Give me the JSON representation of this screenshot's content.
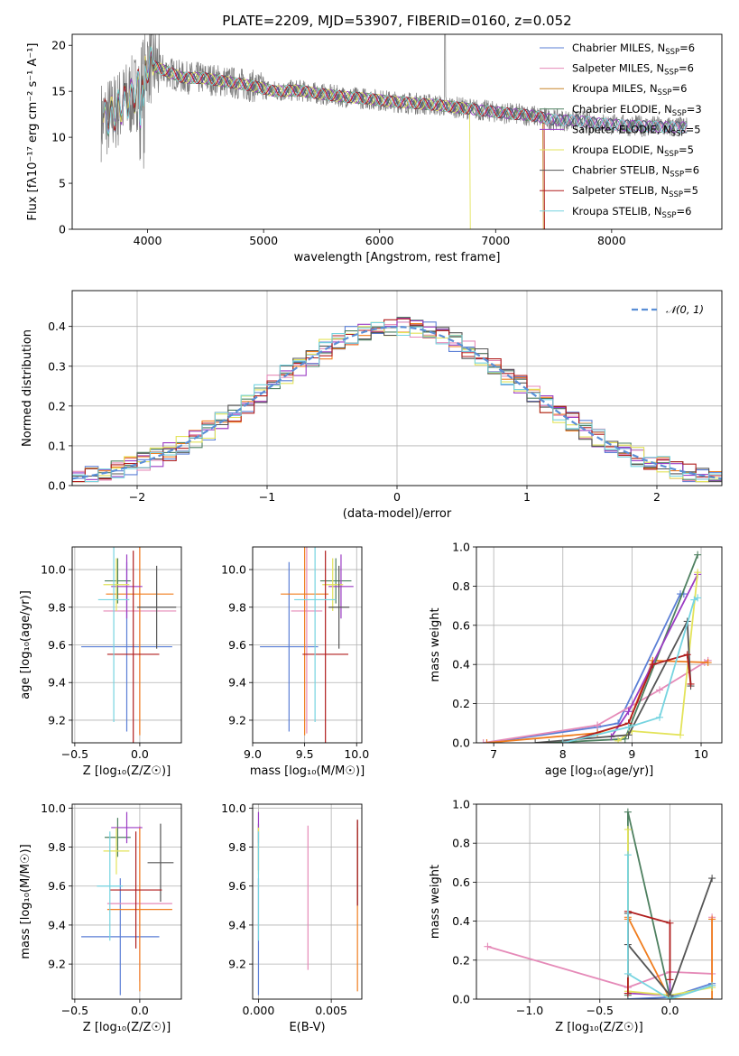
{
  "title": "PLATE=2209, MJD=53907, FIBERID=0160, z=0.052",
  "colors": {
    "chabrier_miles": "#5b7fd6",
    "salpeter_miles": "#e58ab8",
    "kroupa_miles": "#c8862a",
    "chabrier_elodie": "#9b3cc4",
    "salpeter_elodie": "#9b3cc4",
    "kroupa_elodie": "#e3e35a",
    "chabrier_stelib": "#555555",
    "salpeter_stelib": "#b01d1d",
    "kroupa_stelib": "#76d4e0",
    "orange": "#f07d1e",
    "green": "#4e8060",
    "gaussian": "#5b8fd6",
    "grid": "#b0b0b0"
  },
  "chart_data": [
    {
      "id": "spectrum",
      "type": "line",
      "title": "PLATE=2209, MJD=53907, FIBERID=0160, z=0.052",
      "xlabel": "wavelength [Angstrom, rest frame]",
      "ylabel": "Flux [fλ10⁻¹⁷ erg cm⁻² s⁻¹ A⁻¹]",
      "xlim": [
        3350,
        8950
      ],
      "ylim": [
        0,
        21.2
      ],
      "xticks": [
        4000,
        5000,
        6000,
        7000,
        8000
      ],
      "yticks": [
        0,
        5,
        10,
        15,
        20
      ],
      "grid": false,
      "legend_position": "top-right",
      "legend": [
        {
          "label": "Chabrier MILES, N",
          "sub": "SSP",
          "suffix": "=6",
          "color": "#5b7fd6"
        },
        {
          "label": "Salpeter MILES, N",
          "sub": "SSP",
          "suffix": "=6",
          "color": "#e58ab8"
        },
        {
          "label": "Kroupa MILES, N",
          "sub": "SSP",
          "suffix": "=6",
          "color": "#c8862a"
        },
        {
          "label": "Chabrier ELODIE, N",
          "sub": "SSP",
          "suffix": "=3",
          "color": "#4e8060"
        },
        {
          "label": "Salpeter ELODIE, N",
          "sub": "SSP",
          "suffix": "=5",
          "color": "#9b3cc4"
        },
        {
          "label": "Kroupa ELODIE, N",
          "sub": "SSP",
          "suffix": "=5",
          "color": "#e3e35a"
        },
        {
          "label": "Chabrier STELIB, N",
          "sub": "SSP",
          "suffix": "=6",
          "color": "#555555"
        },
        {
          "label": "Salpeter STELIB, N",
          "sub": "SSP",
          "suffix": "=5",
          "color": "#b01d1d"
        },
        {
          "label": "Kroupa STELIB, N",
          "sub": "SSP",
          "suffix": "=6",
          "color": "#76d4e0"
        }
      ],
      "continuum": [
        [
          3600,
          11.8
        ],
        [
          3700,
          12.5
        ],
        [
          3800,
          13.8
        ],
        [
          3900,
          14.8
        ],
        [
          4000,
          18.0
        ],
        [
          4100,
          17.5
        ],
        [
          4200,
          17.0
        ],
        [
          4300,
          16.5
        ],
        [
          4500,
          16.4
        ],
        [
          4700,
          16.0
        ],
        [
          4900,
          15.6
        ],
        [
          5100,
          15.0
        ],
        [
          5300,
          15.1
        ],
        [
          5500,
          14.7
        ],
        [
          5700,
          14.4
        ],
        [
          5900,
          14.2
        ],
        [
          6100,
          13.9
        ],
        [
          6300,
          13.7
        ],
        [
          6500,
          13.5
        ],
        [
          6700,
          13.2
        ],
        [
          6900,
          12.9
        ],
        [
          7100,
          12.6
        ],
        [
          7300,
          12.4
        ],
        [
          7500,
          11.9
        ],
        [
          7700,
          11.8
        ],
        [
          7900,
          11.5
        ],
        [
          8100,
          11.3
        ],
        [
          8300,
          11.2
        ],
        [
          8500,
          11.1
        ],
        [
          8650,
          11.1
        ]
      ]
    },
    {
      "id": "residuals",
      "type": "line",
      "xlabel": "(data-model)/error",
      "ylabel": "Normed distribution",
      "xlim": [
        -2.5,
        2.5
      ],
      "ylim": [
        0,
        0.49
      ],
      "xticks": [
        -2,
        -1,
        0,
        1,
        2
      ],
      "yticks": [
        0.0,
        0.1,
        0.2,
        0.3,
        0.4
      ],
      "grid": true,
      "legend_position": "top-right",
      "legend": [
        {
          "label": "𝒩(0, 1)",
          "color": "#5b8fd6"
        }
      ],
      "bin_width": 0.1
    },
    {
      "id": "age_vs_Z",
      "type": "scatter",
      "xlabel": "Z [log₁₀(Z/Z☉)]",
      "ylabel": "age [log₁₀(age/yr)]",
      "xlim": [
        -0.52,
        0.32
      ],
      "ylim": [
        9.08,
        10.12
      ],
      "xticks": [
        -0.5,
        0.0
      ],
      "yticks": [
        9.2,
        9.4,
        9.6,
        9.8,
        10.0
      ],
      "grid": true,
      "points": [
        {
          "color": "#5b7fd6",
          "x": -0.1,
          "xerr": 0.35,
          "y": 9.59,
          "yerr": 0.45
        },
        {
          "color": "#e58ab8",
          "x": 0.0,
          "xerr": 0.28,
          "y": 9.78,
          "yerr": 0.65
        },
        {
          "color": "#f07d1e",
          "x": 0.0,
          "xerr": 0.26,
          "y": 9.87,
          "yerr": 0.75
        },
        {
          "color": "#4e8060",
          "x": -0.17,
          "xerr": 0.1,
          "y": 9.94,
          "yerr": 0.12
        },
        {
          "color": "#9b3cc4",
          "x": -0.1,
          "xerr": 0.12,
          "y": 9.91,
          "yerr": 0.17
        },
        {
          "color": "#e3e35a",
          "x": -0.18,
          "xerr": 0.1,
          "y": 9.92,
          "yerr": 0.14
        },
        {
          "color": "#555555",
          "x": 0.13,
          "xerr": 0.15,
          "y": 9.8,
          "yerr": 0.22
        },
        {
          "color": "#b01d1d",
          "x": -0.05,
          "xerr": 0.2,
          "y": 9.55,
          "yerr": 0.55
        },
        {
          "color": "#76d4e0",
          "x": -0.2,
          "xerr": 0.12,
          "y": 9.84,
          "yerr": 0.65
        }
      ]
    },
    {
      "id": "age_vs_mass",
      "type": "scatter",
      "xlabel": "mass [log₁₀(M/M☉)]",
      "xlim": [
        9.0,
        10.05
      ],
      "ylim": [
        9.08,
        10.12
      ],
      "xticks": [
        9.0,
        9.5,
        10.0
      ],
      "yticks": [
        9.2,
        9.4,
        9.6,
        9.8,
        10.0
      ],
      "grid": true,
      "points": [
        {
          "color": "#5b7fd6",
          "x": 9.35,
          "xerr": 0.28,
          "y": 9.59,
          "yerr": 0.45
        },
        {
          "color": "#e58ab8",
          "x": 9.52,
          "xerr": 0.15,
          "y": 9.78,
          "yerr": 0.65
        },
        {
          "color": "#f07d1e",
          "x": 9.5,
          "xerr": 0.23,
          "y": 9.87,
          "yerr": 0.75
        },
        {
          "color": "#4e8060",
          "x": 9.8,
          "xerr": 0.15,
          "y": 9.94,
          "yerr": 0.12
        },
        {
          "color": "#9b3cc4",
          "x": 9.85,
          "xerr": 0.12,
          "y": 9.91,
          "yerr": 0.17
        },
        {
          "color": "#e3e35a",
          "x": 9.77,
          "xerr": 0.1,
          "y": 9.92,
          "yerr": 0.14
        },
        {
          "color": "#555555",
          "x": 9.83,
          "xerr": 0.1,
          "y": 9.8,
          "yerr": 0.22
        },
        {
          "color": "#b01d1d",
          "x": 9.7,
          "xerr": 0.22,
          "y": 9.55,
          "yerr": 0.55
        },
        {
          "color": "#76d4e0",
          "x": 9.6,
          "xerr": 0.2,
          "y": 9.84,
          "yerr": 0.65
        }
      ]
    },
    {
      "id": "weight_vs_age",
      "type": "line",
      "xlabel": "age [log₁₀(age/yr)]",
      "ylabel": "mass weight",
      "xlim": [
        6.75,
        10.3
      ],
      "ylim": [
        0,
        1.0
      ],
      "xticks": [
        7,
        8,
        9,
        10
      ],
      "yticks": [
        0.0,
        0.2,
        0.4,
        0.6,
        0.8,
        1.0
      ],
      "grid": true,
      "series": [
        {
          "color": "#5b7fd6",
          "x": [
            6.9,
            8.5,
            8.8,
            9.7,
            9.75
          ],
          "y": [
            0.0,
            0.08,
            0.1,
            0.76,
            0.76
          ]
        },
        {
          "color": "#e58ab8",
          "x": [
            6.85,
            8.5,
            9.4,
            10.05,
            10.1
          ],
          "y": [
            0.0,
            0.09,
            0.27,
            0.41,
            0.42
          ]
        },
        {
          "color": "#f07d1e",
          "x": [
            6.9,
            8.5,
            8.95,
            9.3,
            10.1
          ],
          "y": [
            0.0,
            0.05,
            0.1,
            0.42,
            0.41
          ]
        },
        {
          "color": "#4e8060",
          "x": [
            7.8,
            8.9,
            9.95
          ],
          "y": [
            0.0,
            0.02,
            0.96
          ]
        },
        {
          "color": "#9b3cc4",
          "x": [
            8.7,
            8.95,
            9.95
          ],
          "y": [
            0.03,
            0.16,
            0.86
          ]
        },
        {
          "color": "#e3e35a",
          "x": [
            8.8,
            9.0,
            9.7,
            9.95
          ],
          "y": [
            0.01,
            0.06,
            0.04,
            0.87
          ]
        },
        {
          "color": "#555555",
          "x": [
            7.6,
            8.95,
            9.8,
            9.85
          ],
          "y": [
            0.0,
            0.04,
            0.62,
            0.29
          ]
        },
        {
          "color": "#b01d1d",
          "x": [
            8.0,
            8.95,
            9.3,
            9.8,
            9.85
          ],
          "y": [
            0.0,
            0.1,
            0.4,
            0.45,
            0.3
          ]
        },
        {
          "color": "#76d4e0",
          "x": [
            8.0,
            8.95,
            9.4,
            9.9,
            9.95
          ],
          "y": [
            0.0,
            0.08,
            0.13,
            0.73,
            0.74
          ]
        }
      ]
    },
    {
      "id": "mass_vs_Z",
      "type": "scatter",
      "xlabel": "Z [log₁₀(Z/Z☉)]",
      "ylabel": "mass [log₁₀(M/M☉)]",
      "xlim": [
        -0.52,
        0.32
      ],
      "ylim": [
        9.02,
        10.02
      ],
      "xticks": [
        -0.5,
        0.0
      ],
      "yticks": [
        9.2,
        9.4,
        9.6,
        9.8,
        10.0
      ],
      "grid": true,
      "points": [
        {
          "color": "#5b7fd6",
          "x": -0.15,
          "xerr": 0.3,
          "y": 9.34,
          "yerr": 0.3
        },
        {
          "color": "#e58ab8",
          "x": 0.0,
          "xerr": 0.25,
          "y": 9.51,
          "yerr": 0.4
        },
        {
          "color": "#f07d1e",
          "x": 0.0,
          "xerr": 0.25,
          "y": 9.48,
          "yerr": 0.42
        },
        {
          "color": "#4e8060",
          "x": -0.17,
          "xerr": 0.1,
          "y": 9.85,
          "yerr": 0.1
        },
        {
          "color": "#9b3cc4",
          "x": -0.1,
          "xerr": 0.12,
          "y": 9.9,
          "yerr": 0.08
        },
        {
          "color": "#e3e35a",
          "x": -0.18,
          "xerr": 0.1,
          "y": 9.78,
          "yerr": 0.12
        },
        {
          "color": "#555555",
          "x": 0.16,
          "xerr": 0.1,
          "y": 9.72,
          "yerr": 0.2
        },
        {
          "color": "#b01d1d",
          "x": -0.03,
          "xerr": 0.2,
          "y": 9.58,
          "yerr": 0.3
        },
        {
          "color": "#76d4e0",
          "x": -0.23,
          "xerr": 0.1,
          "y": 9.6,
          "yerr": 0.28
        }
      ]
    },
    {
      "id": "mass_vs_ebv",
      "type": "scatter",
      "xlabel": "E(B-V)",
      "xlim": [
        -0.0004,
        0.0071
      ],
      "ylim": [
        9.02,
        10.02
      ],
      "xticks": [
        0.0,
        0.005
      ],
      "xticklabels": [
        "0.000",
        "0.005"
      ],
      "yticks": [
        9.2,
        9.4,
        9.6,
        9.8,
        10.0
      ],
      "grid": true,
      "points": [
        {
          "color": "#5b7fd6",
          "x": 0.0,
          "y": 9.34,
          "yerr": 0.3
        },
        {
          "color": "#e58ab8",
          "x": 0.0034,
          "y": 9.54,
          "yerr": 0.37
        },
        {
          "color": "#f07d1e",
          "x": 0.0068,
          "y": 9.48,
          "yerr": 0.42
        },
        {
          "color": "#4e8060",
          "x": 0.0,
          "y": 9.8,
          "yerr": 0.12
        },
        {
          "color": "#9b3cc4",
          "x": 0.0,
          "y": 9.9,
          "yerr": 0.08
        },
        {
          "color": "#e3e35a",
          "x": 0.0,
          "y": 9.78,
          "yerr": 0.12
        },
        {
          "color": "#555555",
          "x": 0.0068,
          "y": 9.72,
          "yerr": 0.22
        },
        {
          "color": "#b01d1d",
          "x": 0.0068,
          "y": 9.72,
          "yerr": 0.22
        },
        {
          "color": "#76d4e0",
          "x": 0.0,
          "y": 9.6,
          "yerr": 0.28
        }
      ]
    },
    {
      "id": "weight_vs_Z",
      "type": "line",
      "xlabel": "Z [log₁₀(Z/Z☉)]",
      "ylabel": "mass weight",
      "xlim": [
        -1.38,
        0.37
      ],
      "ylim": [
        0,
        1.0
      ],
      "xticks": [
        -1.0,
        -0.5,
        0.0
      ],
      "xticklabels": [
        "−1.0",
        "−0.5",
        "0.0"
      ],
      "yticks": [
        0.0,
        0.2,
        0.4,
        0.6,
        0.8,
        1.0
      ],
      "grid": true,
      "series": [
        {
          "color": "#5b7fd6",
          "x": [
            -0.3,
            0.0,
            0.3,
            0.3
          ],
          "y": [
            0.0,
            0.01,
            0.08,
            0.07
          ]
        },
        {
          "color": "#e58ab8",
          "x": [
            -1.3,
            -0.3,
            0.0,
            0.3,
            0.3
          ],
          "y": [
            0.27,
            0.06,
            0.14,
            0.13,
            0.42
          ]
        },
        {
          "color": "#f07d1e",
          "x": [
            -0.3,
            -0.3,
            0.0,
            0.3,
            0.3
          ],
          "y": [
            0.41,
            0.42,
            0.0,
            0.0,
            0.41
          ]
        },
        {
          "color": "#4e8060",
          "x": [
            -0.3,
            -0.3,
            0.0
          ],
          "y": [
            0.02,
            0.96,
            0.01
          ]
        },
        {
          "color": "#9b3cc4",
          "x": [
            -0.3,
            0.0,
            0.0
          ],
          "y": [
            0.03,
            0.02,
            0.1
          ]
        },
        {
          "color": "#e3e35a",
          "x": [
            -0.3,
            -0.3,
            0.0,
            0.3
          ],
          "y": [
            0.87,
            0.04,
            0.02,
            0.06
          ]
        },
        {
          "color": "#555555",
          "x": [
            -0.3,
            -0.3,
            0.0,
            0.3
          ],
          "y": [
            0.44,
            0.28,
            0.02,
            0.62
          ]
        },
        {
          "color": "#b01d1d",
          "x": [
            -0.3,
            -0.3,
            0.0,
            0.0
          ],
          "y": [
            0.03,
            0.45,
            0.39,
            0.1
          ]
        },
        {
          "color": "#76d4e0",
          "x": [
            -0.3,
            -0.3,
            0.0,
            0.3
          ],
          "y": [
            0.74,
            0.13,
            0.0,
            0.07
          ]
        }
      ]
    }
  ]
}
